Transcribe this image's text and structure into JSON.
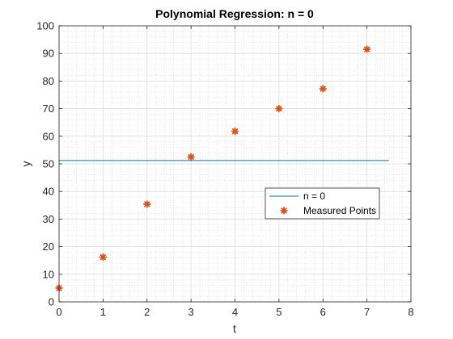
{
  "chart_data": {
    "type": "scatter",
    "title": "Polynomial Regression: n = 0",
    "xlabel": "t",
    "ylabel": "y",
    "xlim": [
      0,
      8
    ],
    "ylim": [
      0,
      100
    ],
    "xticks": [
      0,
      1,
      2,
      3,
      4,
      5,
      6,
      7,
      8
    ],
    "yticks": [
      0,
      10,
      20,
      30,
      40,
      50,
      60,
      70,
      80,
      90,
      100
    ],
    "grid": true,
    "minor_grid": true,
    "legend_position": "center-right",
    "series": [
      {
        "name": "n = 0",
        "kind": "line",
        "color": "#0072BD",
        "x": [
          0,
          7.5
        ],
        "y": [
          51.2,
          51.2
        ]
      },
      {
        "name": "Measured Points",
        "kind": "markers",
        "color": "#D95319",
        "x": [
          0,
          1,
          2,
          3,
          4,
          5,
          6,
          7
        ],
        "y": [
          5.0,
          16.2,
          35.4,
          52.5,
          61.8,
          70.0,
          77.2,
          91.5
        ]
      }
    ]
  }
}
